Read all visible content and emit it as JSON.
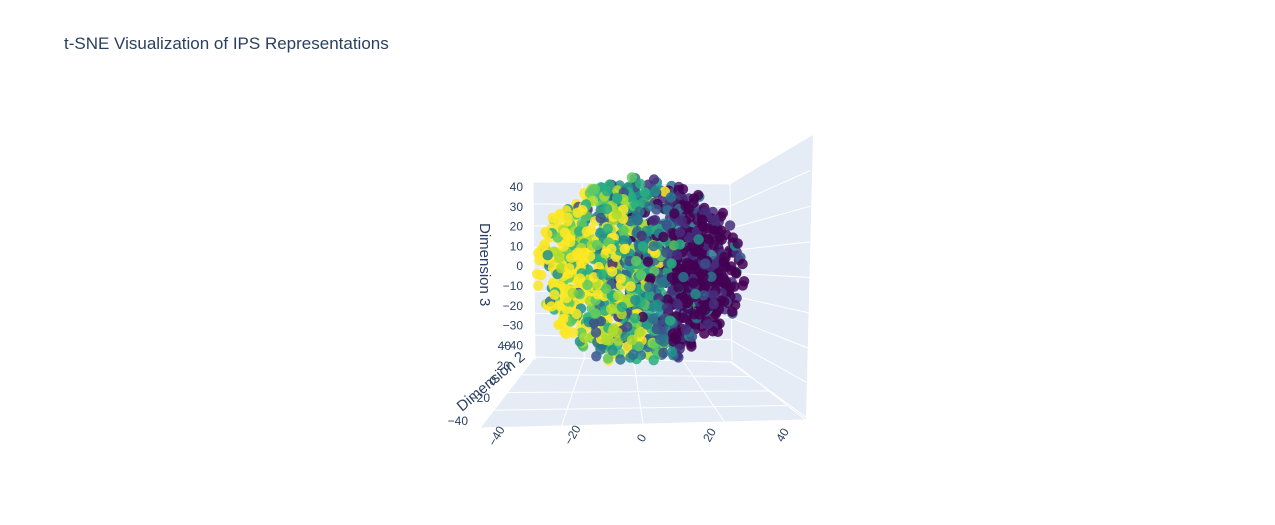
{
  "chart_data": {
    "type": "scatter",
    "subtype": "3d-scatter",
    "title": "t-SNE Visualization of IPS Representations",
    "xlabel": "",
    "ylabel": "Dimension 2",
    "zlabel": "Dimension 3",
    "x_ticks": [
      "−40",
      "−20",
      "0",
      "20",
      "40"
    ],
    "y_ticks": [
      "−40",
      "−20",
      "0",
      "20",
      "40"
    ],
    "z_ticks": [
      "−40",
      "−30",
      "−20",
      "−10",
      "0",
      "10",
      "20",
      "30",
      "40"
    ],
    "xlim": [
      -45,
      45
    ],
    "ylim": [
      -45,
      45
    ],
    "zlim": [
      -45,
      45
    ],
    "colorscale": "viridis",
    "colors": [
      "#440154",
      "#472d7b",
      "#3b528b",
      "#2c728e",
      "#21918c",
      "#28ae80",
      "#5ec962",
      "#addc30",
      "#fde725"
    ],
    "background_color": "#e5ecf6",
    "grid": true,
    "legend": "none",
    "point_count_approx": 1500,
    "clusters": [
      {
        "label": "purple cluster (low value)",
        "x_center": 25,
        "z_center": 5,
        "color": "#440154"
      },
      {
        "label": "yellow-green cluster (high value)",
        "x_center": -25,
        "z_center": 0,
        "color": "#fde725"
      }
    ]
  }
}
